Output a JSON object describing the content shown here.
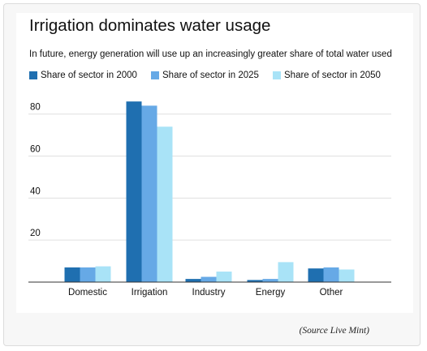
{
  "source": "(Source Live Mint)",
  "chart_data": {
    "type": "bar",
    "title": "Irrigation dominates water usage",
    "subtitle": "In future, energy generation will use up an increasingly greater share of total water used",
    "categories": [
      "Domestic",
      "Irrigation",
      "Industry",
      "Energy",
      "Other"
    ],
    "series": [
      {
        "name": "Share of sector in 2000",
        "color": "#1f6fb0",
        "values": [
          7,
          86,
          1.5,
          1,
          6.5
        ]
      },
      {
        "name": "Share of sector in 2025",
        "color": "#66a9e6",
        "values": [
          7,
          84,
          2.5,
          1.5,
          7
        ]
      },
      {
        "name": "Share of sector in 2050",
        "color": "#a9e3f7",
        "values": [
          7.5,
          74,
          5,
          9.5,
          6
        ]
      }
    ],
    "yticks": [
      "20",
      "40",
      "60",
      "80"
    ],
    "ylim": [
      0,
      88
    ],
    "grid": true,
    "legend_position": "top"
  }
}
